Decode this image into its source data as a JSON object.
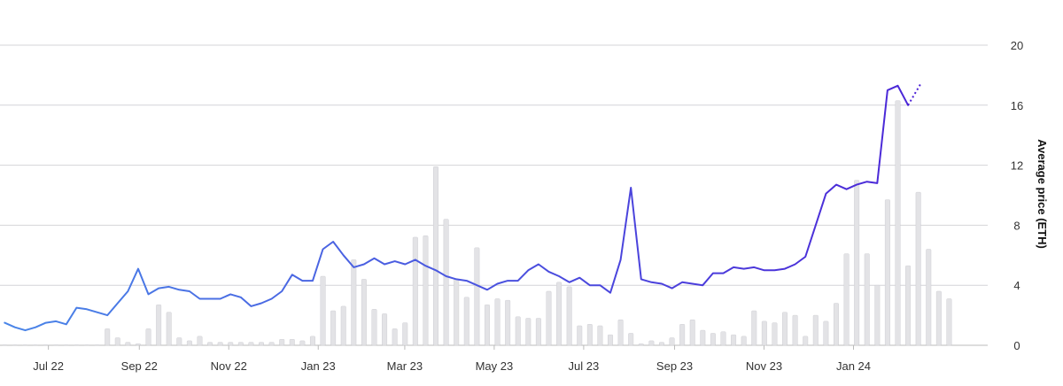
{
  "chart_data": {
    "type": "bar",
    "title": "",
    "xlabel": "",
    "ylabel": "Average price (ETH)",
    "ylim": [
      0,
      20
    ],
    "y_ticks": [
      "0",
      "4",
      "8",
      "12",
      "16",
      "20"
    ],
    "x_ticks": [
      "Jul 22",
      "Sep 22",
      "Nov 22",
      "Jan 23",
      "Mar 23",
      "May 23",
      "Jul 23",
      "Sep 23",
      "Nov 23",
      "Jan 24"
    ],
    "grid": true,
    "x_start": "2022-05-29",
    "week_step_days": 7,
    "colors": {
      "bars": "#e3e3e6",
      "bar_stroke": "#cfcfd4",
      "line_start": "#4a86e8",
      "line_end": "#4b1fd6",
      "grid": "#d4d4d8",
      "axis": "#bbbbbb"
    },
    "series": [
      {
        "kind": "bar",
        "values": [
          0,
          0,
          0,
          0,
          0,
          0,
          0,
          0,
          0,
          0,
          1.1,
          0.5,
          0.2,
          0.1,
          1.1,
          2.7,
          2.2,
          0.5,
          0.3,
          0.6,
          0.2,
          0.2,
          0.2,
          0.2,
          0.2,
          0.2,
          0.2,
          0.4,
          0.4,
          0.3,
          0.6,
          4.6,
          2.3,
          2.6,
          5.7,
          4.4,
          2.4,
          2.1,
          1.1,
          1.5,
          7.2,
          7.3,
          11.9,
          8.4,
          4.4,
          3.2,
          6.5,
          2.7,
          3.1,
          3.0,
          1.9,
          1.8,
          1.8,
          3.6,
          4.2,
          3.9,
          1.3,
          1.4,
          1.3,
          0.7,
          1.7,
          0.8,
          0.1,
          0.3,
          0.2,
          0.5,
          1.4,
          1.7,
          1.0,
          0.8,
          0.9,
          0.7,
          0.6,
          2.3,
          1.6,
          1.5,
          2.2,
          2.0,
          0.6,
          2.0,
          1.6,
          2.8,
          6.1,
          11.0,
          6.1,
          4.0,
          9.7,
          16.3,
          5.3,
          10.2,
          6.4,
          3.6,
          3.1
        ]
      },
      {
        "kind": "line",
        "values": [
          1.5,
          1.2,
          1.0,
          1.2,
          1.5,
          1.6,
          1.4,
          2.5,
          2.4,
          2.2,
          2.0,
          2.8,
          3.6,
          5.1,
          3.4,
          3.8,
          3.9,
          3.7,
          3.6,
          3.1,
          3.1,
          3.1,
          3.4,
          3.2,
          2.6,
          2.8,
          3.1,
          3.6,
          4.7,
          4.3,
          4.3,
          6.4,
          6.9,
          6.0,
          5.2,
          5.4,
          5.8,
          5.4,
          5.6,
          5.4,
          5.7,
          5.3,
          5.0,
          4.6,
          4.4,
          4.3,
          4.0,
          3.7,
          4.1,
          4.3,
          4.3,
          5.0,
          5.4,
          4.9,
          4.6,
          4.2,
          4.5,
          4.0,
          4.0,
          3.5,
          5.7,
          10.5,
          4.4,
          4.2,
          4.1,
          3.8,
          4.2,
          4.1,
          4.0,
          4.8,
          4.8,
          5.2,
          5.1,
          5.2,
          5.0,
          5.0,
          5.1,
          5.4,
          5.9,
          8.0,
          10.1,
          10.7,
          10.4,
          10.7,
          10.9,
          10.8,
          17.0,
          17.3,
          16.0
        ]
      },
      {
        "kind": "line-forecast",
        "values": [
          16.0,
          17.4
        ]
      }
    ]
  }
}
